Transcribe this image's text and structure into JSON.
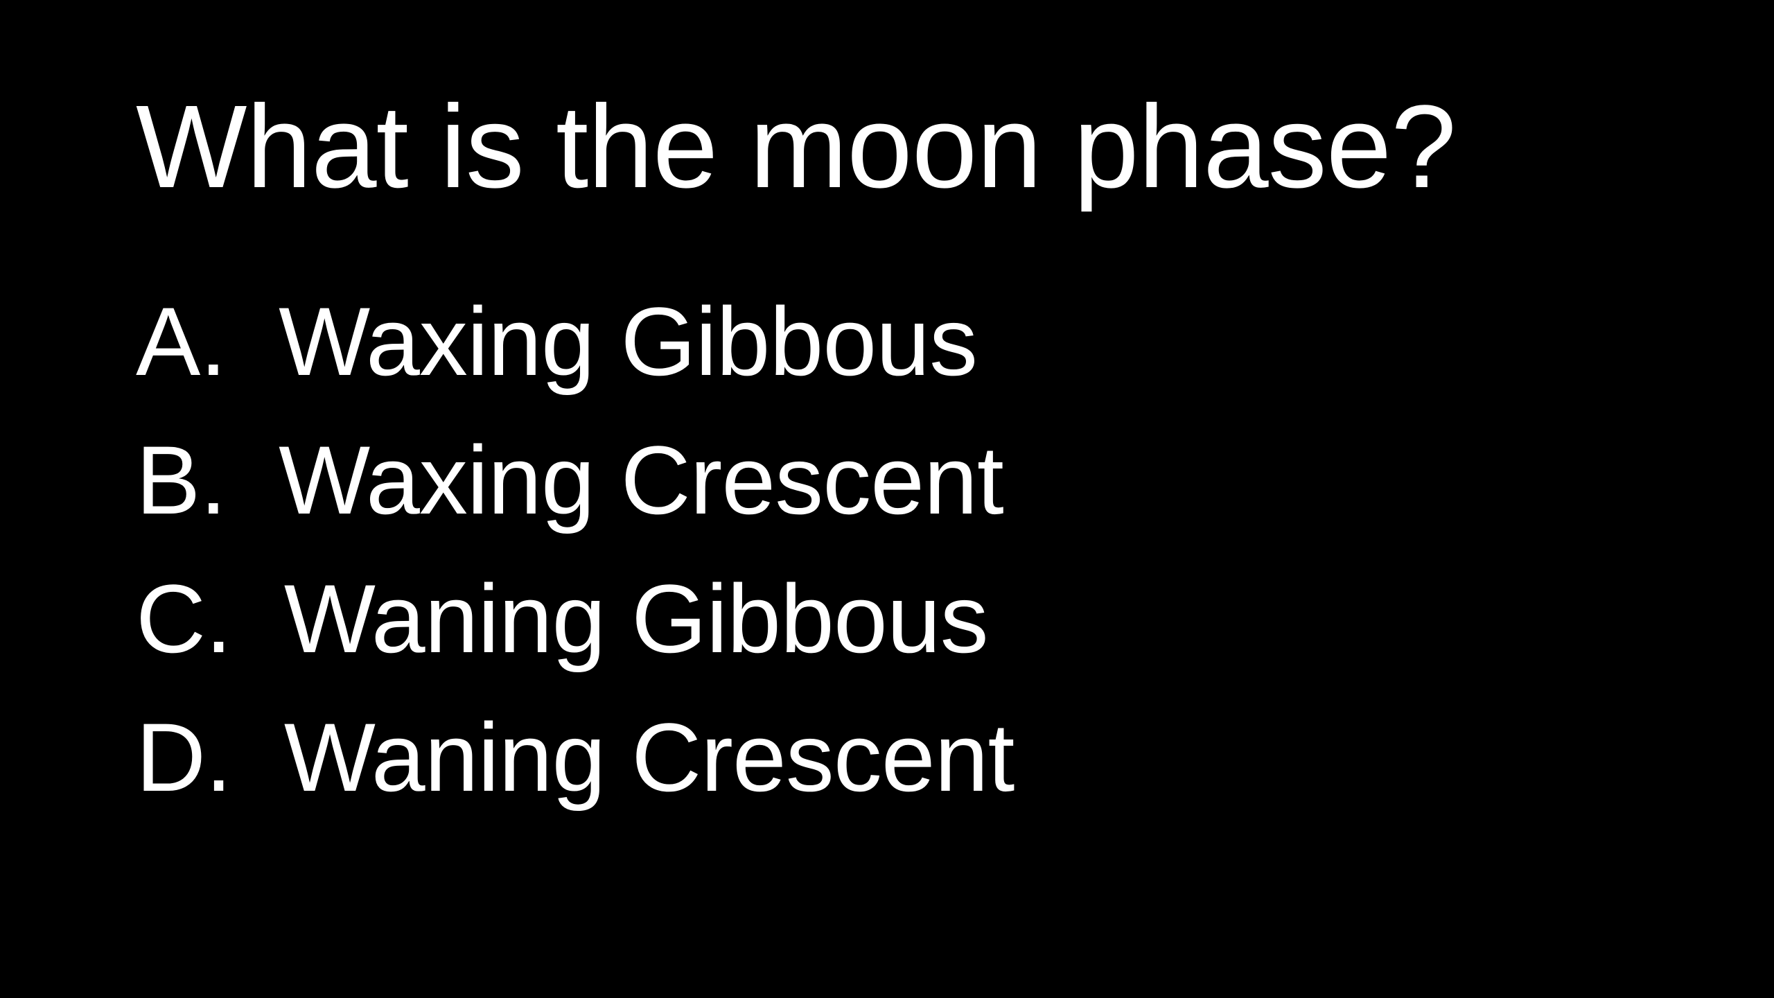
{
  "slide": {
    "title": "What is the moon phase?",
    "options": [
      {
        "letter": "A.",
        "text": "Waxing Gibbous"
      },
      {
        "letter": "B.",
        "text": "Waxing Crescent"
      },
      {
        "letter": "C.",
        "text": "Waning Gibbous"
      },
      {
        "letter": "D.",
        "text": "Waning Crescent"
      }
    ]
  },
  "colors": {
    "background": "#000000",
    "text": "#ffffff"
  }
}
